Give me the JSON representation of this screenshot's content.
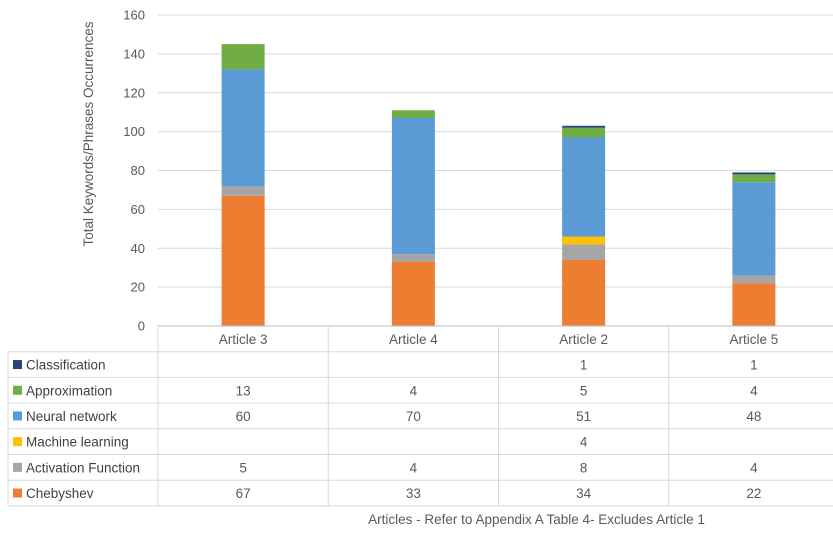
{
  "chart_data": {
    "type": "bar",
    "stacked": true,
    "categories": [
      "Article 3",
      "Article 4",
      "Article 2",
      "Article 5"
    ],
    "series": [
      {
        "name": "Chebyshev",
        "color": "#ED7D31",
        "values": [
          67,
          33,
          34,
          22
        ]
      },
      {
        "name": "Activation Function",
        "color": "#A5A5A5",
        "values": [
          5,
          4,
          8,
          4
        ]
      },
      {
        "name": "Machine learning",
        "color": "#FFC000",
        "values": [
          null,
          null,
          4,
          null
        ]
      },
      {
        "name": "Neural network",
        "color": "#5B9BD5",
        "values": [
          60,
          70,
          51,
          48
        ]
      },
      {
        "name": "Approximation",
        "color": "#70AD47",
        "values": [
          13,
          4,
          5,
          4
        ]
      },
      {
        "name": "Classification",
        "color": "#264478",
        "values": [
          null,
          null,
          1,
          1
        ]
      }
    ],
    "table_order": [
      "Classification",
      "Approximation",
      "Neural network",
      "Machine learning",
      "Activation Function",
      "Chebyshev"
    ],
    "ylabel": "Total Keywords/Phrases Occurrences",
    "xlabel": "Articles - Refer to Appendix A Table 4- Excludes Article 1",
    "ylim": [
      0,
      160
    ],
    "yticks": [
      0,
      20,
      40,
      60,
      80,
      100,
      120,
      140,
      160
    ],
    "grid": true,
    "legend": "data-table"
  }
}
